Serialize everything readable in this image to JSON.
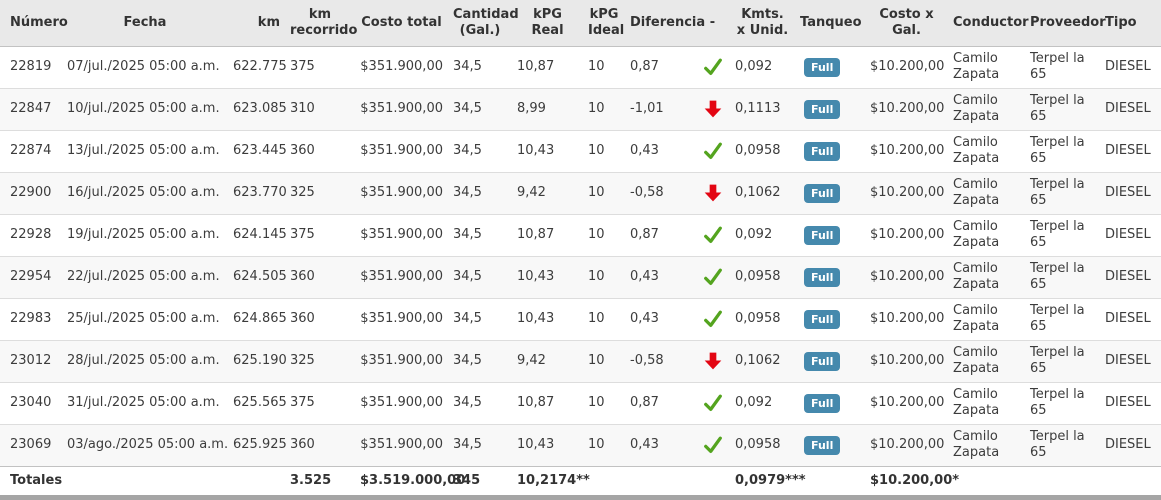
{
  "colors": {
    "header_bg": "#e9e9e9",
    "row_alt_bg": "#f8f8f8",
    "border": "#dddddd",
    "strong_border": "#c2c2c2",
    "text": "#3c3c3c",
    "badge_blue": "#4589ad",
    "check_green": "#54a41f",
    "arrow_red": "#e30613",
    "bottom_bar": "#a5a5a5"
  },
  "table": {
    "columns": [
      {
        "key": "numero",
        "label": "Número"
      },
      {
        "key": "fecha",
        "label": "Fecha"
      },
      {
        "key": "km",
        "label": "km"
      },
      {
        "key": "km_recorrido",
        "label": "km recorrido"
      },
      {
        "key": "costo_total",
        "label": "Costo total"
      },
      {
        "key": "cantidad",
        "label": "Cantidad (Gal.)"
      },
      {
        "key": "kpg_real",
        "label": "kPG Real"
      },
      {
        "key": "kpg_ideal",
        "label": "kPG Ideal"
      },
      {
        "key": "diferencia",
        "label": "Diferencia"
      },
      {
        "key": "estado",
        "label": "-"
      },
      {
        "key": "kmts_x_unid",
        "label": "Kmts. x Unid."
      },
      {
        "key": "tanqueo",
        "label": "Tanqueo"
      },
      {
        "key": "costo_x_gal",
        "label": "Costo x Gal."
      },
      {
        "key": "conductor",
        "label": "Conductor"
      },
      {
        "key": "proveedor",
        "label": "Proveedor"
      },
      {
        "key": "tipo",
        "label": "Tipo"
      }
    ],
    "rows": [
      {
        "numero": "22819",
        "fecha": "07/jul./2025 05:00 a.m.",
        "km": "622.775",
        "km_recorrido": "375",
        "costo_total": "$351.900,00",
        "cantidad": "34,5",
        "kpg_real": "10,87",
        "kpg_ideal": "10",
        "diferencia": "0,87",
        "estado_icon": "check-icon",
        "kmts_x_unid": "0,092",
        "tanqueo": "Full",
        "costo_x_gal": "$10.200,00",
        "conductor": "Camilo Zapata",
        "proveedor": "Terpel la 65",
        "tipo": "DIESEL"
      },
      {
        "numero": "22847",
        "fecha": "10/jul./2025 05:00 a.m.",
        "km": "623.085",
        "km_recorrido": "310",
        "costo_total": "$351.900,00",
        "cantidad": "34,5",
        "kpg_real": "8,99",
        "kpg_ideal": "10",
        "diferencia": "-1,01",
        "estado_icon": "down-arrow-icon",
        "kmts_x_unid": "0,1113",
        "tanqueo": "Full",
        "costo_x_gal": "$10.200,00",
        "conductor": "Camilo Zapata",
        "proveedor": "Terpel la 65",
        "tipo": "DIESEL"
      },
      {
        "numero": "22874",
        "fecha": "13/jul./2025 05:00 a.m.",
        "km": "623.445",
        "km_recorrido": "360",
        "costo_total": "$351.900,00",
        "cantidad": "34,5",
        "kpg_real": "10,43",
        "kpg_ideal": "10",
        "diferencia": "0,43",
        "estado_icon": "check-icon",
        "kmts_x_unid": "0,0958",
        "tanqueo": "Full",
        "costo_x_gal": "$10.200,00",
        "conductor": "Camilo Zapata",
        "proveedor": "Terpel la 65",
        "tipo": "DIESEL"
      },
      {
        "numero": "22900",
        "fecha": "16/jul./2025 05:00 a.m.",
        "km": "623.770",
        "km_recorrido": "325",
        "costo_total": "$351.900,00",
        "cantidad": "34,5",
        "kpg_real": "9,42",
        "kpg_ideal": "10",
        "diferencia": "-0,58",
        "estado_icon": "down-arrow-icon",
        "kmts_x_unid": "0,1062",
        "tanqueo": "Full",
        "costo_x_gal": "$10.200,00",
        "conductor": "Camilo Zapata",
        "proveedor": "Terpel la 65",
        "tipo": "DIESEL"
      },
      {
        "numero": "22928",
        "fecha": "19/jul./2025 05:00 a.m.",
        "km": "624.145",
        "km_recorrido": "375",
        "costo_total": "$351.900,00",
        "cantidad": "34,5",
        "kpg_real": "10,87",
        "kpg_ideal": "10",
        "diferencia": "0,87",
        "estado_icon": "check-icon",
        "kmts_x_unid": "0,092",
        "tanqueo": "Full",
        "costo_x_gal": "$10.200,00",
        "conductor": "Camilo Zapata",
        "proveedor": "Terpel la 65",
        "tipo": "DIESEL"
      },
      {
        "numero": "22954",
        "fecha": "22/jul./2025 05:00 a.m.",
        "km": "624.505",
        "km_recorrido": "360",
        "costo_total": "$351.900,00",
        "cantidad": "34,5",
        "kpg_real": "10,43",
        "kpg_ideal": "10",
        "diferencia": "0,43",
        "estado_icon": "check-icon",
        "kmts_x_unid": "0,0958",
        "tanqueo": "Full",
        "costo_x_gal": "$10.200,00",
        "conductor": "Camilo Zapata",
        "proveedor": "Terpel la 65",
        "tipo": "DIESEL"
      },
      {
        "numero": "22983",
        "fecha": "25/jul./2025 05:00 a.m.",
        "km": "624.865",
        "km_recorrido": "360",
        "costo_total": "$351.900,00",
        "cantidad": "34,5",
        "kpg_real": "10,43",
        "kpg_ideal": "10",
        "diferencia": "0,43",
        "estado_icon": "check-icon",
        "kmts_x_unid": "0,0958",
        "tanqueo": "Full",
        "costo_x_gal": "$10.200,00",
        "conductor": "Camilo Zapata",
        "proveedor": "Terpel la 65",
        "tipo": "DIESEL"
      },
      {
        "numero": "23012",
        "fecha": "28/jul./2025 05:00 a.m.",
        "km": "625.190",
        "km_recorrido": "325",
        "costo_total": "$351.900,00",
        "cantidad": "34,5",
        "kpg_real": "9,42",
        "kpg_ideal": "10",
        "diferencia": "-0,58",
        "estado_icon": "down-arrow-icon",
        "kmts_x_unid": "0,1062",
        "tanqueo": "Full",
        "costo_x_gal": "$10.200,00",
        "conductor": "Camilo Zapata",
        "proveedor": "Terpel la 65",
        "tipo": "DIESEL"
      },
      {
        "numero": "23040",
        "fecha": "31/jul./2025 05:00 a.m.",
        "km": "625.565",
        "km_recorrido": "375",
        "costo_total": "$351.900,00",
        "cantidad": "34,5",
        "kpg_real": "10,87",
        "kpg_ideal": "10",
        "diferencia": "0,87",
        "estado_icon": "check-icon",
        "kmts_x_unid": "0,092",
        "tanqueo": "Full",
        "costo_x_gal": "$10.200,00",
        "conductor": "Camilo Zapata",
        "proveedor": "Terpel la 65",
        "tipo": "DIESEL"
      },
      {
        "numero": "23069",
        "fecha": "03/ago./2025 05:00 a.m.",
        "km": "625.925",
        "km_recorrido": "360",
        "costo_total": "$351.900,00",
        "cantidad": "34,5",
        "kpg_real": "10,43",
        "kpg_ideal": "10",
        "diferencia": "0,43",
        "estado_icon": "check-icon",
        "kmts_x_unid": "0,0958",
        "tanqueo": "Full",
        "costo_x_gal": "$10.200,00",
        "conductor": "Camilo Zapata",
        "proveedor": "Terpel la 65",
        "tipo": "DIESEL"
      }
    ],
    "totals": {
      "label": "Totales",
      "km_recorrido": "3.525",
      "costo_total": "$3.519.000,00",
      "cantidad": "345",
      "kpg_real": "10,2174**",
      "kmts_x_unid": "0,0979***",
      "costo_x_gal": "$10.200,00*"
    }
  }
}
